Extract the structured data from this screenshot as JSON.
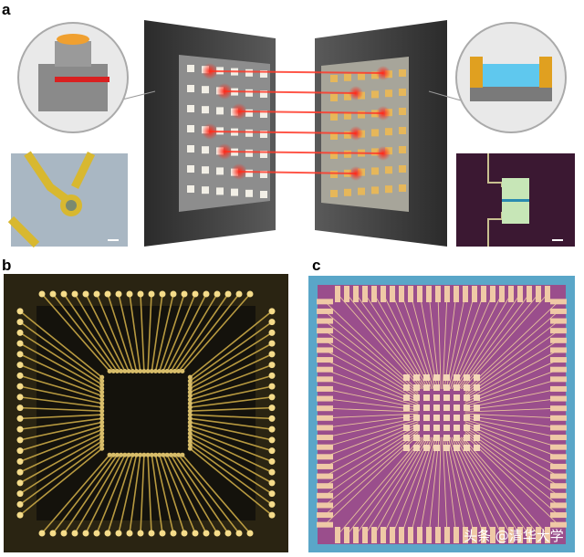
{
  "panels": [
    {
      "label": "a"
    },
    {
      "label": "b"
    },
    {
      "label": "c"
    }
  ],
  "watermark": "头条 @清华大学"
}
